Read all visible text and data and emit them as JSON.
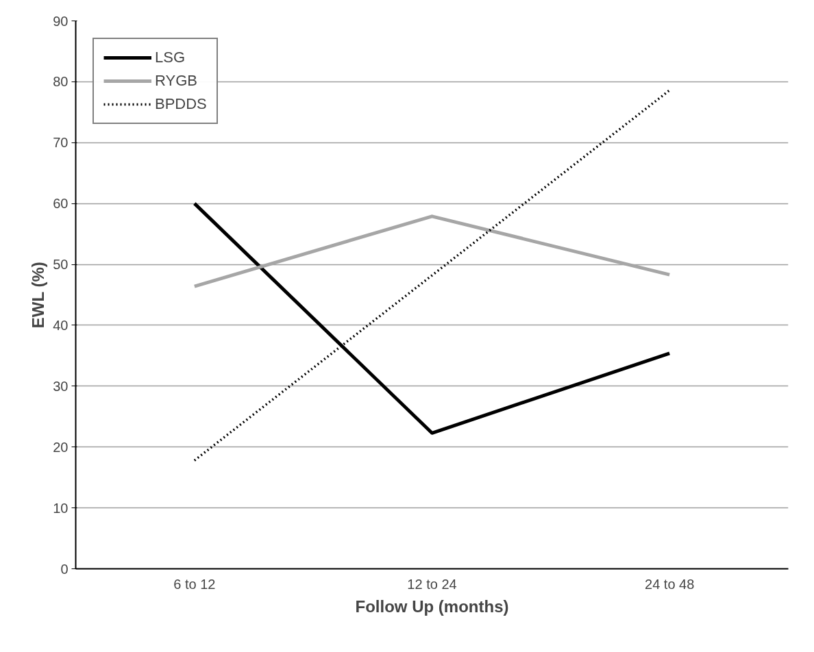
{
  "chart_data": {
    "type": "line",
    "xlabel": "Follow Up (months)",
    "ylabel": "EWL (%)",
    "categories": [
      "6 to 12",
      "12 to 24",
      "24 to 48"
    ],
    "series": [
      {
        "name": "LSG",
        "color": "#000000",
        "line_style": "solid",
        "values": [
          60.0,
          22.3,
          35.4
        ]
      },
      {
        "name": "RYGB",
        "color": "#a6a6a6",
        "line_style": "solid",
        "values": [
          46.4,
          57.9,
          48.3
        ]
      },
      {
        "name": "BPDDS",
        "color": "#000000",
        "line_style": "dotted",
        "values": [
          17.8,
          48.2,
          78.6
        ]
      }
    ],
    "ylim": [
      0,
      90
    ],
    "yticks": [
      0,
      10,
      20,
      30,
      40,
      50,
      60,
      70,
      80,
      90
    ],
    "grid": "y",
    "legend": "top left",
    "marker": "none"
  }
}
